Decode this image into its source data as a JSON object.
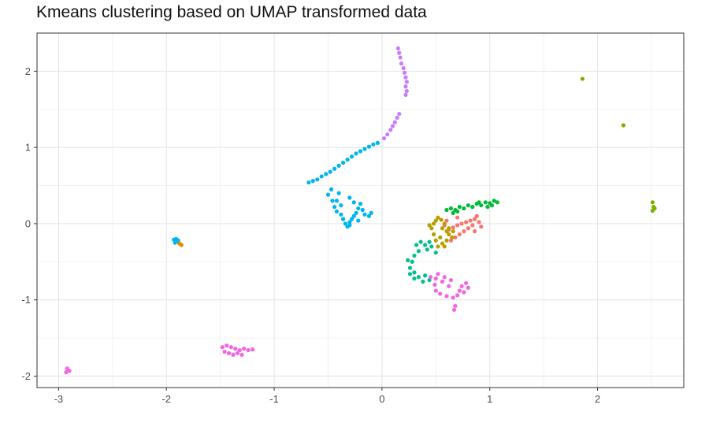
{
  "chart_data": {
    "type": "scatter",
    "title": "Kmeans clustering based on UMAP transformed data",
    "xlabel": "",
    "ylabel": "",
    "xlim": [
      -3.2,
      2.8
    ],
    "ylim": [
      -2.15,
      2.5
    ],
    "x_ticks": [
      -3,
      -2,
      -1,
      0,
      1,
      2
    ],
    "x_tick_labels": [
      "-3",
      "-2",
      "-1",
      "0",
      "1",
      "2"
    ],
    "y_ticks": [
      -2,
      -1,
      0,
      1,
      2
    ],
    "y_tick_labels": [
      "-2",
      "-1",
      "0",
      "1",
      "2"
    ],
    "grid": true,
    "legend": "none",
    "series": [
      {
        "color": "#F8766D",
        "points": [
          [
            0.62,
            -0.08
          ],
          [
            0.66,
            -0.05
          ],
          [
            0.7,
            -0.02
          ],
          [
            0.74,
            0.0
          ],
          [
            0.78,
            0.02
          ],
          [
            0.82,
            0.04
          ],
          [
            0.86,
            0.06
          ],
          [
            0.88,
            0.1
          ],
          [
            0.9,
            0.02
          ],
          [
            0.84,
            -0.02
          ],
          [
            0.8,
            -0.06
          ],
          [
            0.76,
            -0.1
          ],
          [
            0.72,
            -0.14
          ],
          [
            0.68,
            -0.18
          ],
          [
            0.64,
            -0.22
          ],
          [
            0.86,
            -0.1
          ],
          [
            0.92,
            -0.04
          ],
          [
            0.58,
            -0.02
          ],
          [
            0.6,
            0.04
          ],
          [
            0.7,
            0.08
          ]
        ]
      },
      {
        "color": "#B79F00",
        "points": [
          [
            0.5,
            0.04
          ],
          [
            0.52,
            0.08
          ],
          [
            0.55,
            0.05
          ],
          [
            0.58,
            0.0
          ],
          [
            0.56,
            -0.06
          ],
          [
            0.6,
            -0.1
          ],
          [
            0.62,
            -0.14
          ],
          [
            0.65,
            -0.18
          ],
          [
            0.6,
            -0.22
          ],
          [
            0.56,
            -0.26
          ],
          [
            0.52,
            -0.3
          ],
          [
            0.5,
            -0.22
          ],
          [
            0.48,
            -0.14
          ],
          [
            0.46,
            -0.06
          ],
          [
            0.48,
            0.0
          ],
          [
            0.54,
            -0.18
          ],
          [
            0.58,
            -0.3
          ],
          [
            0.62,
            -0.06
          ],
          [
            0.66,
            -0.1
          ],
          [
            0.44,
            -0.02
          ]
        ]
      },
      {
        "color": "#00BA38",
        "points": [
          [
            0.64,
            0.2
          ],
          [
            0.68,
            0.18
          ],
          [
            0.72,
            0.22
          ],
          [
            0.76,
            0.2
          ],
          [
            0.8,
            0.24
          ],
          [
            0.84,
            0.22
          ],
          [
            0.88,
            0.26
          ],
          [
            0.92,
            0.24
          ],
          [
            0.96,
            0.28
          ],
          [
            1.0,
            0.27
          ],
          [
            1.04,
            0.3
          ],
          [
            1.07,
            0.28
          ],
          [
            0.9,
            0.28
          ],
          [
            0.7,
            0.16
          ],
          [
            0.6,
            0.18
          ],
          [
            0.66,
            0.14
          ],
          [
            0.98,
            0.22
          ],
          [
            1.02,
            0.24
          ]
        ]
      },
      {
        "color": "#00C08B",
        "points": [
          [
            0.32,
            -0.28
          ],
          [
            0.36,
            -0.24
          ],
          [
            0.4,
            -0.28
          ],
          [
            0.34,
            -0.36
          ],
          [
            0.3,
            -0.42
          ],
          [
            0.28,
            -0.5
          ],
          [
            0.26,
            -0.58
          ],
          [
            0.3,
            -0.64
          ],
          [
            0.34,
            -0.7
          ],
          [
            0.4,
            -0.68
          ],
          [
            0.44,
            -0.74
          ],
          [
            0.38,
            -0.76
          ],
          [
            0.3,
            -0.72
          ],
          [
            0.26,
            -0.66
          ],
          [
            0.42,
            -0.34
          ],
          [
            0.46,
            -0.3
          ],
          [
            0.44,
            -0.24
          ],
          [
            0.5,
            -0.38
          ],
          [
            0.24,
            -0.48
          ]
        ]
      },
      {
        "color": "#00B4F0",
        "points": [
          [
            -0.68,
            0.54
          ],
          [
            -0.64,
            0.56
          ],
          [
            -0.6,
            0.58
          ],
          [
            -0.56,
            0.62
          ],
          [
            -0.52,
            0.65
          ],
          [
            -0.48,
            0.68
          ],
          [
            -0.44,
            0.72
          ],
          [
            -0.4,
            0.76
          ],
          [
            -0.36,
            0.8
          ],
          [
            -0.32,
            0.84
          ],
          [
            -0.28,
            0.88
          ],
          [
            -0.24,
            0.92
          ],
          [
            -0.2,
            0.95
          ],
          [
            -0.16,
            0.98
          ],
          [
            -0.12,
            1.01
          ],
          [
            -0.08,
            1.04
          ],
          [
            -0.04,
            1.06
          ],
          [
            -0.47,
            0.45
          ],
          [
            -0.5,
            0.38
          ],
          [
            -0.46,
            0.3
          ],
          [
            -0.44,
            0.22
          ],
          [
            -0.42,
            0.16
          ],
          [
            -0.38,
            0.12
          ],
          [
            -0.36,
            0.06
          ],
          [
            -0.34,
            0.0
          ],
          [
            -0.32,
            -0.04
          ],
          [
            -0.3,
            0.02
          ],
          [
            -0.28,
            0.06
          ],
          [
            -0.26,
            0.1
          ],
          [
            -0.24,
            0.14
          ],
          [
            -0.22,
            0.2
          ],
          [
            -0.26,
            0.28
          ],
          [
            -0.3,
            0.34
          ],
          [
            -0.2,
            0.26
          ],
          [
            -0.18,
            0.18
          ],
          [
            -0.16,
            0.12
          ],
          [
            -0.12,
            0.1
          ],
          [
            -0.1,
            0.14
          ],
          [
            -0.38,
            0.24
          ],
          [
            -0.42,
            0.3
          ],
          [
            -0.4,
            0.4
          ],
          [
            -0.36,
            0.06
          ],
          [
            -0.22,
            0.04
          ],
          [
            -0.3,
            -0.02
          ],
          [
            -1.93,
            -0.21
          ],
          [
            -1.9,
            -0.23
          ],
          [
            -1.92,
            -0.25
          ],
          [
            -1.89,
            -0.22
          ],
          [
            -1.91,
            -0.2
          ]
        ]
      },
      {
        "color": "#C77CFF",
        "points": [
          [
            0.02,
            1.12
          ],
          [
            0.05,
            1.17
          ],
          [
            0.08,
            1.23
          ],
          [
            0.1,
            1.28
          ],
          [
            0.12,
            1.33
          ],
          [
            0.14,
            1.39
          ],
          [
            0.16,
            1.44
          ],
          [
            0.15,
            2.3
          ],
          [
            0.16,
            2.24
          ],
          [
            0.17,
            2.18
          ],
          [
            0.18,
            2.1
          ],
          [
            0.2,
            2.04
          ],
          [
            0.21,
            1.98
          ],
          [
            0.22,
            1.92
          ],
          [
            0.23,
            1.86
          ],
          [
            0.22,
            1.8
          ],
          [
            0.23,
            1.74
          ],
          [
            0.22,
            1.69
          ]
        ]
      },
      {
        "color": "#F564E3",
        "points": [
          [
            0.52,
            -0.66
          ],
          [
            0.5,
            -0.72
          ],
          [
            0.49,
            -0.8
          ],
          [
            0.5,
            -0.88
          ],
          [
            0.54,
            -0.92
          ],
          [
            0.6,
            -0.95
          ],
          [
            0.66,
            -0.97
          ],
          [
            0.7,
            -0.94
          ],
          [
            0.72,
            -0.88
          ],
          [
            0.74,
            -0.82
          ],
          [
            0.78,
            -0.78
          ],
          [
            0.8,
            -0.84
          ],
          [
            0.76,
            -0.9
          ],
          [
            0.58,
            -0.7
          ],
          [
            0.56,
            -0.76
          ],
          [
            0.62,
            -0.82
          ],
          [
            0.68,
            -1.08
          ],
          [
            0.67,
            -1.13
          ],
          [
            0.45,
            -0.7
          ],
          [
            0.64,
            -0.74
          ],
          [
            -1.48,
            -1.62
          ],
          [
            -1.44,
            -1.6
          ],
          [
            -1.4,
            -1.62
          ],
          [
            -1.36,
            -1.64
          ],
          [
            -1.32,
            -1.66
          ],
          [
            -1.28,
            -1.64
          ],
          [
            -1.24,
            -1.66
          ],
          [
            -1.2,
            -1.65
          ],
          [
            -1.46,
            -1.68
          ],
          [
            -1.42,
            -1.7
          ],
          [
            -1.38,
            -1.72
          ],
          [
            -1.34,
            -1.7
          ],
          [
            -1.3,
            -1.72
          ],
          [
            -2.92,
            -1.9
          ],
          [
            -2.9,
            -1.93
          ],
          [
            -2.93,
            -1.95
          ]
        ]
      },
      {
        "color": "#7CAE00",
        "points": [
          [
            1.86,
            1.9
          ],
          [
            2.24,
            1.29
          ],
          [
            2.51,
            0.28
          ],
          [
            2.52,
            0.22
          ],
          [
            2.51,
            0.17
          ],
          [
            2.53,
            0.2
          ]
        ]
      },
      {
        "color": "#DE8C00",
        "points": [
          [
            -1.88,
            -0.26
          ],
          [
            -1.86,
            -0.28
          ]
        ]
      }
    ]
  }
}
